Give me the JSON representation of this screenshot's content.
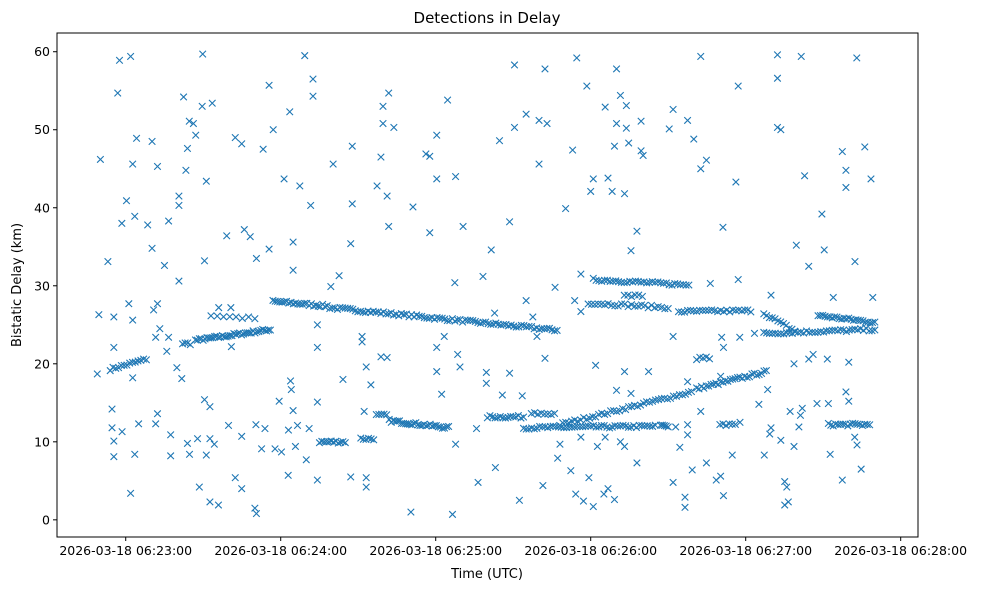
{
  "chart_data": {
    "type": "scatter",
    "title": "Detections in Delay",
    "xlabel": "Time (UTC)",
    "ylabel": "Bistatic Delay (km)",
    "x_unit": "seconds relative to 2026-03-18 06:23:00",
    "xlim": [
      -26.6,
      306.7
    ],
    "ylim": [
      -2.2,
      62.4
    ],
    "marker": "x",
    "color": "#1f77b4",
    "grid": false,
    "legend": "none",
    "x_ticks": [
      {
        "value": 0,
        "label": "2026-03-18 06:23:00"
      },
      {
        "value": 60,
        "label": "2026-03-18 06:24:00"
      },
      {
        "value": 120,
        "label": "2026-03-18 06:25:00"
      },
      {
        "value": 180,
        "label": "2026-03-18 06:26:00"
      },
      {
        "value": 240,
        "label": "2026-03-18 06:27:00"
      },
      {
        "value": 300,
        "label": "2026-03-18 06:28:00"
      }
    ],
    "y_ticks": [
      {
        "value": 0,
        "label": "0"
      },
      {
        "value": 10,
        "label": "10"
      },
      {
        "value": 20,
        "label": "20"
      },
      {
        "value": 30,
        "label": "30"
      },
      {
        "value": 40,
        "label": "40"
      },
      {
        "value": 50,
        "label": "50"
      },
      {
        "value": 60,
        "label": "60"
      }
    ],
    "track_segments": [
      {
        "t0": -6,
        "v0": 19.3,
        "t1": 8,
        "v1": 20.6,
        "n": 14
      },
      {
        "t0": 22,
        "v0": 22.6,
        "t1": 25,
        "v1": 22.6,
        "n": 4
      },
      {
        "t0": 27,
        "v0": 23.0,
        "t1": 56,
        "v1": 24.4,
        "n": 40
      },
      {
        "t0": 33,
        "v0": 26.2,
        "t1": 50,
        "v1": 25.8,
        "n": 8
      },
      {
        "t0": 57,
        "v0": 28.0,
        "t1": 78,
        "v1": 27.4,
        "n": 25
      },
      {
        "t0": 79,
        "v0": 27.2,
        "t1": 167,
        "v1": 24.3,
        "n": 90
      },
      {
        "t0": 75,
        "v0": 10.0,
        "t1": 85,
        "v1": 10.0,
        "n": 12
      },
      {
        "t0": 91,
        "v0": 10.4,
        "t1": 96,
        "v1": 10.4,
        "n": 6
      },
      {
        "t0": 97,
        "v0": 13.4,
        "t1": 101,
        "v1": 13.4,
        "n": 5
      },
      {
        "t0": 102,
        "v0": 12.7,
        "t1": 125,
        "v1": 11.8,
        "n": 30
      },
      {
        "t0": 140,
        "v0": 13.2,
        "t1": 154,
        "v1": 13.2,
        "n": 15
      },
      {
        "t0": 154,
        "v0": 11.8,
        "t1": 205,
        "v1": 12.0,
        "n": 50
      },
      {
        "t0": 157,
        "v0": 13.6,
        "t1": 166,
        "v1": 13.6,
        "n": 8
      },
      {
        "t0": 168,
        "v0": 12.2,
        "t1": 219,
        "v1": 16.4,
        "n": 45
      },
      {
        "t0": 221,
        "v0": 16.8,
        "t1": 248,
        "v1": 19.0,
        "n": 30
      },
      {
        "t0": 181,
        "v0": 30.8,
        "t1": 218,
        "v1": 30.1,
        "n": 35
      },
      {
        "t0": 179,
        "v0": 27.8,
        "t1": 210,
        "v1": 27.2,
        "n": 25
      },
      {
        "t0": 193,
        "v0": 28.7,
        "t1": 200,
        "v1": 28.7,
        "n": 6
      },
      {
        "t0": 214,
        "v0": 26.7,
        "t1": 242,
        "v1": 26.8,
        "n": 25
      },
      {
        "t0": 247,
        "v0": 26.5,
        "t1": 259,
        "v1": 24.2,
        "n": 12
      },
      {
        "t0": 268,
        "v0": 26.2,
        "t1": 290,
        "v1": 25.3,
        "n": 25
      },
      {
        "t0": 247,
        "v0": 23.9,
        "t1": 290,
        "v1": 24.4,
        "n": 40
      },
      {
        "t0": 207,
        "v0": 12.0,
        "t1": 210,
        "v1": 12.0,
        "n": 5
      },
      {
        "t0": 230,
        "v0": 12.2,
        "t1": 236,
        "v1": 12.2,
        "n": 6
      },
      {
        "t0": 272,
        "v0": 12.2,
        "t1": 288,
        "v1": 12.2,
        "n": 18
      },
      {
        "t0": 221,
        "v0": 20.7,
        "t1": 226,
        "v1": 20.7,
        "n": 5
      }
    ],
    "points": [
      [
        -11,
        18.7
      ],
      [
        -10.4,
        26.3
      ],
      [
        -9.8,
        46.2
      ],
      [
        -6.9,
        33.1
      ],
      [
        -5.3,
        14.2
      ],
      [
        -5.3,
        11.8
      ],
      [
        -4.6,
        10.1
      ],
      [
        -4.6,
        8.1
      ],
      [
        -4.6,
        26.0
      ],
      [
        -4.6,
        22.1
      ],
      [
        -3.1,
        54.7
      ],
      [
        -2.4,
        58.9
      ],
      [
        -1.5,
        38.0
      ],
      [
        -1.4,
        11.3
      ],
      [
        0.3,
        40.9
      ],
      [
        1.2,
        27.7
      ],
      [
        1.9,
        59.4
      ],
      [
        1.9,
        3.4
      ],
      [
        2.7,
        45.6
      ],
      [
        2.7,
        25.6
      ],
      [
        2.7,
        18.2
      ],
      [
        3.5,
        38.9
      ],
      [
        3.5,
        8.4
      ],
      [
        4.2,
        48.9
      ],
      [
        5,
        12.3
      ],
      [
        8.5,
        37.8
      ],
      [
        10.2,
        48.5
      ],
      [
        10.2,
        34.8
      ],
      [
        10.8,
        26.9
      ],
      [
        11.6,
        23.4
      ],
      [
        11.6,
        12.3
      ],
      [
        12.3,
        27.7
      ],
      [
        12.3,
        45.3
      ],
      [
        12.3,
        13.6
      ],
      [
        13.2,
        24.5
      ],
      [
        15,
        32.6
      ],
      [
        16.6,
        38.3
      ],
      [
        16.6,
        23.4
      ],
      [
        15.9,
        21.6
      ],
      [
        17.4,
        10.9
      ],
      [
        17.4,
        8.2
      ],
      [
        19.8,
        19.5
      ],
      [
        20.6,
        30.6
      ],
      [
        20.6,
        41.5
      ],
      [
        20.6,
        40.3
      ],
      [
        21.7,
        18.1
      ],
      [
        22.4,
        54.2
      ],
      [
        23.3,
        44.8
      ],
      [
        23.9,
        47.6
      ],
      [
        23.9,
        9.8
      ],
      [
        24.6,
        51.1
      ],
      [
        24.7,
        8.4
      ],
      [
        26.2,
        50.8
      ],
      [
        27.1,
        49.3
      ],
      [
        27.8,
        10.4
      ],
      [
        28.5,
        4.2
      ],
      [
        29.6,
        53.0
      ],
      [
        29.8,
        59.7
      ],
      [
        30.5,
        33.2
      ],
      [
        30.5,
        15.4
      ],
      [
        31.2,
        43.4
      ],
      [
        31.2,
        8.3
      ],
      [
        32.6,
        14.5
      ],
      [
        32.6,
        2.3
      ],
      [
        33.5,
        53.4
      ],
      [
        32.6,
        10.4
      ],
      [
        34.3,
        9.7
      ],
      [
        35.9,
        1.9
      ],
      [
        36,
        27.2
      ],
      [
        39.1,
        36.4
      ],
      [
        39.8,
        12.1
      ],
      [
        40.7,
        27.2
      ],
      [
        40.9,
        22.2
      ],
      [
        42.4,
        5.4
      ],
      [
        42.4,
        49.0
      ],
      [
        44.9,
        48.2
      ],
      [
        44.9,
        4.0
      ],
      [
        44.9,
        10.7
      ],
      [
        45.9,
        37.2
      ],
      [
        48.2,
        36.3
      ],
      [
        50.4,
        12.2
      ],
      [
        50,
        1.5
      ],
      [
        50.6,
        0.8
      ],
      [
        50.6,
        33.5
      ],
      [
        52.6,
        9.1
      ],
      [
        53.2,
        47.5
      ],
      [
        53.9,
        11.7
      ],
      [
        55.5,
        55.7
      ],
      [
        55.5,
        34.7
      ],
      [
        57.1,
        50.0
      ],
      [
        57.8,
        9.1
      ],
      [
        59.4,
        15.2
      ],
      [
        60.3,
        8.7
      ],
      [
        61.3,
        43.7
      ],
      [
        62.9,
        5.7
      ],
      [
        63.5,
        52.3
      ],
      [
        63,
        11.5
      ],
      [
        64.1,
        16.7
      ],
      [
        63.8,
        17.8
      ],
      [
        64.8,
        35.6
      ],
      [
        64.8,
        32.0
      ],
      [
        64.8,
        14.0
      ],
      [
        65.7,
        9.4
      ],
      [
        66.5,
        12.1
      ],
      [
        67.4,
        42.8
      ],
      [
        69.3,
        59.5
      ],
      [
        69.9,
        7.7
      ],
      [
        71,
        11.7
      ],
      [
        71.6,
        40.3
      ],
      [
        72.5,
        56.5
      ],
      [
        72.5,
        54.3
      ],
      [
        74.2,
        25.0
      ],
      [
        74.2,
        22.1
      ],
      [
        74.2,
        15.1
      ],
      [
        74.2,
        5.1
      ],
      [
        80.3,
        45.6
      ],
      [
        87.7,
        47.9
      ],
      [
        87.7,
        40.5
      ],
      [
        87.1,
        35.4
      ],
      [
        82.6,
        31.3
      ],
      [
        79.4,
        29.9
      ],
      [
        84.1,
        18.0
      ],
      [
        87.1,
        5.5
      ],
      [
        93.1,
        4.2
      ],
      [
        93.1,
        5.4
      ],
      [
        94.9,
        17.3
      ],
      [
        93.1,
        19.6
      ],
      [
        91.5,
        23.5
      ],
      [
        91.5,
        22.8
      ],
      [
        92.3,
        13.9
      ],
      [
        97.3,
        42.8
      ],
      [
        98.8,
        46.5
      ],
      [
        99.6,
        53.0
      ],
      [
        99.6,
        50.8
      ],
      [
        101.8,
        54.7
      ],
      [
        101.2,
        41.5
      ],
      [
        101.8,
        37.6
      ],
      [
        103.8,
        50.3
      ],
      [
        98.8,
        20.9
      ],
      [
        101.2,
        20.8
      ],
      [
        111.2,
        40.1
      ],
      [
        110.4,
        1.0
      ],
      [
        116.2,
        46.9
      ],
      [
        117.7,
        46.6
      ],
      [
        117.7,
        36.8
      ],
      [
        120.4,
        49.3
      ],
      [
        120.4,
        43.7
      ],
      [
        120.4,
        22.1
      ],
      [
        120.4,
        19.0
      ],
      [
        122.3,
        16.1
      ],
      [
        123.3,
        23.5
      ],
      [
        124.6,
        53.8
      ],
      [
        126.5,
        0.7
      ],
      [
        127.7,
        44.0
      ],
      [
        127.4,
        30.4
      ],
      [
        130.6,
        37.6
      ],
      [
        128.5,
        21.2
      ],
      [
        129.4,
        19.6
      ],
      [
        127.7,
        9.7
      ],
      [
        136.4,
        4.8
      ],
      [
        135.8,
        11.7
      ],
      [
        138.3,
        31.2
      ],
      [
        139.6,
        18.9
      ],
      [
        139.6,
        17.5
      ],
      [
        141.5,
        34.6
      ],
      [
        142.8,
        26.5
      ],
      [
        144.7,
        48.6
      ],
      [
        143.1,
        6.7
      ],
      [
        145.8,
        16.0
      ],
      [
        148.6,
        38.2
      ],
      [
        148.6,
        18.8
      ],
      [
        150.5,
        58.3
      ],
      [
        150.5,
        50.3
      ],
      [
        152.4,
        2.5
      ],
      [
        153.5,
        15.9
      ],
      [
        155,
        52.0
      ],
      [
        155,
        28.1
      ],
      [
        157.6,
        26.0
      ],
      [
        159.2,
        23.5
      ],
      [
        160,
        45.6
      ],
      [
        160,
        51.2
      ],
      [
        162.3,
        57.8
      ],
      [
        163.1,
        50.8
      ],
      [
        162.3,
        20.7
      ],
      [
        161.5,
        4.4
      ],
      [
        166.2,
        29.8
      ],
      [
        168.1,
        9.7
      ],
      [
        167.2,
        7.9
      ],
      [
        170.3,
        39.9
      ],
      [
        173,
        47.4
      ],
      [
        173.8,
        28.1
      ],
      [
        172.3,
        6.3
      ],
      [
        174.6,
        59.2
      ],
      [
        176.2,
        31.5
      ],
      [
        176.2,
        26.7
      ],
      [
        176.2,
        10.6
      ],
      [
        174.2,
        3.3
      ],
      [
        177.2,
        2.4
      ],
      [
        178.5,
        55.6
      ],
      [
        180,
        42.1
      ],
      [
        181,
        43.7
      ],
      [
        179.3,
        5.4
      ],
      [
        181,
        1.7
      ],
      [
        181.9,
        19.8
      ],
      [
        182.6,
        9.4
      ],
      [
        185.6,
        52.9
      ],
      [
        186.7,
        43.8
      ],
      [
        185.1,
        3.3
      ],
      [
        186.7,
        4.0
      ],
      [
        189.2,
        2.6
      ],
      [
        188.3,
        42.1
      ],
      [
        189.2,
        47.9
      ],
      [
        190,
        57.8
      ],
      [
        190,
        50.8
      ],
      [
        190,
        16.6
      ],
      [
        191.5,
        54.4
      ],
      [
        193.1,
        41.8
      ],
      [
        193.8,
        53.1
      ],
      [
        193.8,
        50.2
      ],
      [
        194.7,
        48.3
      ],
      [
        193.1,
        19.0
      ],
      [
        195.6,
        16.2
      ],
      [
        195.6,
        34.5
      ],
      [
        197.9,
        37.0
      ],
      [
        199.5,
        51.1
      ],
      [
        199.5,
        47.3
      ],
      [
        200.3,
        46.7
      ],
      [
        197.9,
        7.3
      ],
      [
        202.4,
        19.0
      ],
      [
        191.5,
        10.0
      ],
      [
        193.1,
        9.4
      ],
      [
        185.6,
        10.6
      ],
      [
        222.6,
        59.4
      ],
      [
        252.3,
        59.6
      ],
      [
        252.3,
        56.6
      ],
      [
        261.5,
        59.4
      ],
      [
        283,
        59.2
      ],
      [
        237.1,
        55.6
      ],
      [
        211.9,
        52.6
      ],
      [
        217.5,
        51.2
      ],
      [
        210.4,
        50.1
      ],
      [
        219.9,
        48.8
      ],
      [
        252.3,
        50.3
      ],
      [
        253.6,
        50.0
      ],
      [
        277.4,
        47.2
      ],
      [
        286.1,
        47.8
      ],
      [
        222.6,
        45.0
      ],
      [
        224.8,
        46.1
      ],
      [
        236.2,
        43.3
      ],
      [
        262.8,
        44.1
      ],
      [
        278.8,
        44.8
      ],
      [
        278.8,
        42.6
      ],
      [
        288.5,
        43.7
      ],
      [
        269.5,
        39.2
      ],
      [
        231.2,
        37.5
      ],
      [
        259.6,
        35.2
      ],
      [
        270.4,
        34.6
      ],
      [
        264.4,
        32.5
      ],
      [
        282.3,
        33.1
      ],
      [
        226.3,
        30.3
      ],
      [
        237.1,
        30.8
      ],
      [
        249.8,
        28.8
      ],
      [
        273.9,
        28.5
      ],
      [
        289.2,
        28.5
      ],
      [
        211.9,
        23.5
      ],
      [
        230.7,
        23.4
      ],
      [
        231.4,
        22.1
      ],
      [
        237.7,
        23.4
      ],
      [
        243.4,
        23.9
      ],
      [
        258.7,
        20.0
      ],
      [
        264.4,
        20.6
      ],
      [
        266.1,
        21.2
      ],
      [
        271.6,
        20.6
      ],
      [
        279.9,
        20.2
      ],
      [
        217.5,
        17.7
      ],
      [
        230.3,
        18.4
      ],
      [
        248.5,
        16.7
      ],
      [
        278.8,
        16.4
      ],
      [
        279.9,
        15.2
      ],
      [
        245.1,
        14.8
      ],
      [
        222.6,
        13.9
      ],
      [
        267.6,
        14.9
      ],
      [
        272,
        14.9
      ],
      [
        261.9,
        14.3
      ],
      [
        261.2,
        13.4
      ],
      [
        257.2,
        13.9
      ],
      [
        217.5,
        12.2
      ],
      [
        217.5,
        10.9
      ],
      [
        212.9,
        11.9
      ],
      [
        237.8,
        12.5
      ],
      [
        249.8,
        11.8
      ],
      [
        249.3,
        11.0
      ],
      [
        260.6,
        11.9
      ],
      [
        253.6,
        10.2
      ],
      [
        258.7,
        9.4
      ],
      [
        214.5,
        9.3
      ],
      [
        247.2,
        8.3
      ],
      [
        272.7,
        8.4
      ],
      [
        282.2,
        10.6
      ],
      [
        283.1,
        9.6
      ],
      [
        234.8,
        8.3
      ],
      [
        219.3,
        6.4
      ],
      [
        224.8,
        7.3
      ],
      [
        228.6,
        5.1
      ],
      [
        230.3,
        5.6
      ],
      [
        211.9,
        4.8
      ],
      [
        231.4,
        3.1
      ],
      [
        255.1,
        4.9
      ],
      [
        255.9,
        4.2
      ],
      [
        255.1,
        1.9
      ],
      [
        256.5,
        2.3
      ],
      [
        216.5,
        2.9
      ],
      [
        216.5,
        1.6
      ],
      [
        277.4,
        5.1
      ],
      [
        284.7,
        6.5
      ]
    ]
  }
}
